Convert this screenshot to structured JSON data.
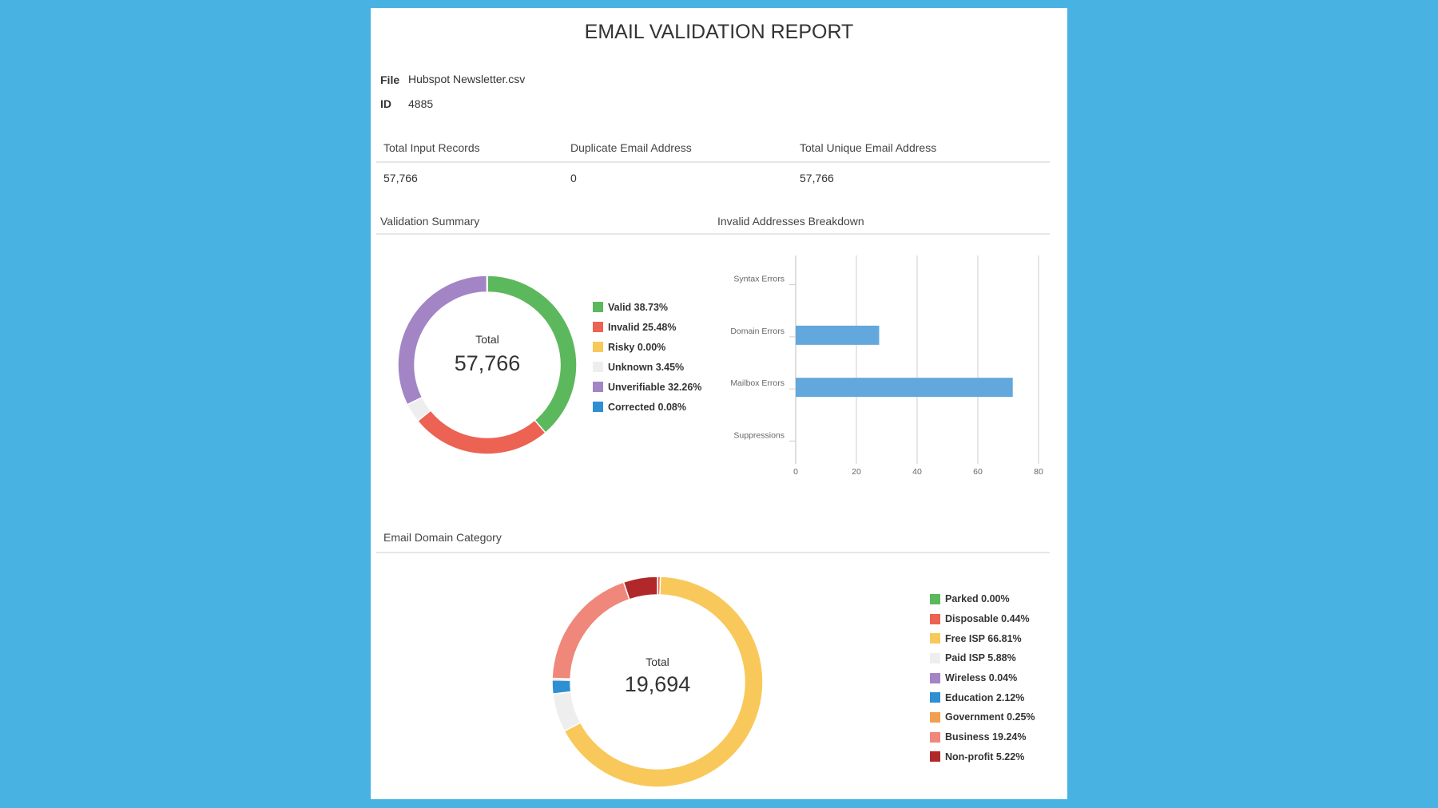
{
  "report": {
    "title": "EMAIL VALIDATION REPORT"
  },
  "meta": {
    "file_label": "File",
    "file_value": "Hubspot Newsletter.csv",
    "id_label": "ID",
    "id_value": "4885"
  },
  "summary_table": {
    "headers": [
      "Total Input Records",
      "Duplicate Email Address",
      "Total Unique Email Address"
    ],
    "values": [
      "57,766",
      "0",
      "57,766"
    ]
  },
  "sections": {
    "validation_summary": "Validation Summary",
    "invalid_breakdown": "Invalid Addresses Breakdown",
    "domain_category": "Email Domain Category"
  },
  "colors": {
    "background": "#48b3e3",
    "bar": "#63a8dc"
  },
  "chart_data": [
    {
      "type": "pie",
      "center_label": "Total",
      "center_value": "57,766",
      "legend_position": "right",
      "slices": [
        {
          "name": "Valid",
          "value": 38.73,
          "label": "Valid 38.73%",
          "color": "#5cb85c"
        },
        {
          "name": "Invalid",
          "value": 25.48,
          "label": "Invalid 25.48%",
          "color": "#ec6253"
        },
        {
          "name": "Risky",
          "value": 0.0,
          "label": "Risky 0.00%",
          "color": "#f8c95a"
        },
        {
          "name": "Unknown",
          "value": 3.45,
          "label": "Unknown 3.45%",
          "color": "#eeeeee"
        },
        {
          "name": "Unverifiable",
          "value": 32.26,
          "label": "Unverifiable 32.26%",
          "color": "#a385c5"
        },
        {
          "name": "Corrected",
          "value": 0.08,
          "label": "Corrected 0.08%",
          "color": "#2e8fd3"
        }
      ]
    },
    {
      "type": "bar",
      "orientation": "horizontal",
      "categories": [
        "Syntax Errors",
        "Domain Errors",
        "Mailbox Errors",
        "Suppressions"
      ],
      "values": [
        0,
        27.5,
        71.5,
        0
      ],
      "xlim": [
        0,
        80
      ],
      "xticks": [
        "0",
        "20",
        "40",
        "60",
        "80"
      ],
      "grid": true
    },
    {
      "type": "pie",
      "center_label": "Total",
      "center_value": "19,694",
      "legend_position": "right",
      "slices": [
        {
          "name": "Parked",
          "value": 0.0,
          "label": "Parked 0.00%",
          "color": "#5cb85c"
        },
        {
          "name": "Disposable",
          "value": 0.44,
          "label": "Disposable 0.44%",
          "color": "#ec6253"
        },
        {
          "name": "Free ISP",
          "value": 66.81,
          "label": "Free ISP 66.81%",
          "color": "#f8c95a"
        },
        {
          "name": "Paid ISP",
          "value": 5.88,
          "label": "Paid ISP 5.88%",
          "color": "#eeeeee"
        },
        {
          "name": "Wireless",
          "value": 0.04,
          "label": "Wireless 0.04%",
          "color": "#a385c5"
        },
        {
          "name": "Education",
          "value": 2.12,
          "label": "Education 2.12%",
          "color": "#2e8fd3"
        },
        {
          "name": "Government",
          "value": 0.25,
          "label": "Government 0.25%",
          "color": "#f0a050"
        },
        {
          "name": "Business",
          "value": 19.24,
          "label": "Business 19.24%",
          "color": "#ef877a"
        },
        {
          "name": "Non-profit",
          "value": 5.22,
          "label": "Non-profit 5.22%",
          "color": "#b0282a"
        }
      ]
    }
  ]
}
